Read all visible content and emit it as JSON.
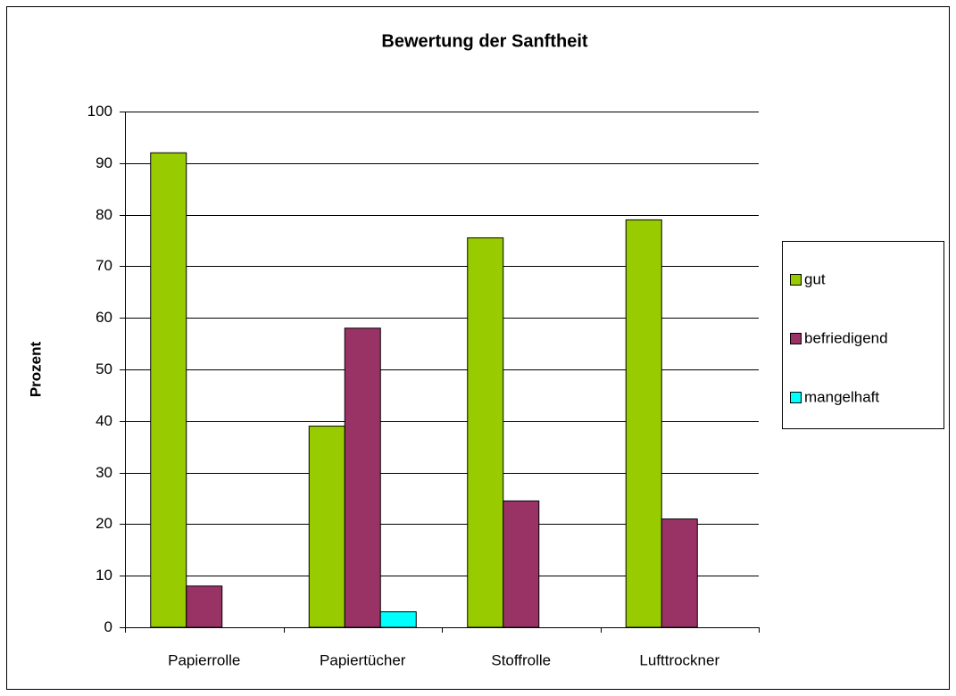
{
  "chart_data": {
    "type": "bar",
    "title": "Bewertung der Sanftheit",
    "y_label": "Prozent",
    "categories": [
      "Papierrolle",
      "Papiertücher",
      "Stoffrolle",
      "Lufttrockner"
    ],
    "series": [
      {
        "name": "gut",
        "color": "#99cc00",
        "values": [
          92,
          39,
          75.5,
          79
        ]
      },
      {
        "name": "befriedigend",
        "color": "#993366",
        "values": [
          8,
          58,
          24.5,
          21
        ]
      },
      {
        "name": "mangelhaft",
        "color": "#00ffff",
        "values": [
          0,
          3,
          0,
          0
        ]
      }
    ],
    "ylim": [
      0,
      100
    ],
    "yticks": [
      0,
      10,
      20,
      30,
      40,
      50,
      60,
      70,
      80,
      90,
      100
    ],
    "grid": true,
    "legend": "right"
  }
}
